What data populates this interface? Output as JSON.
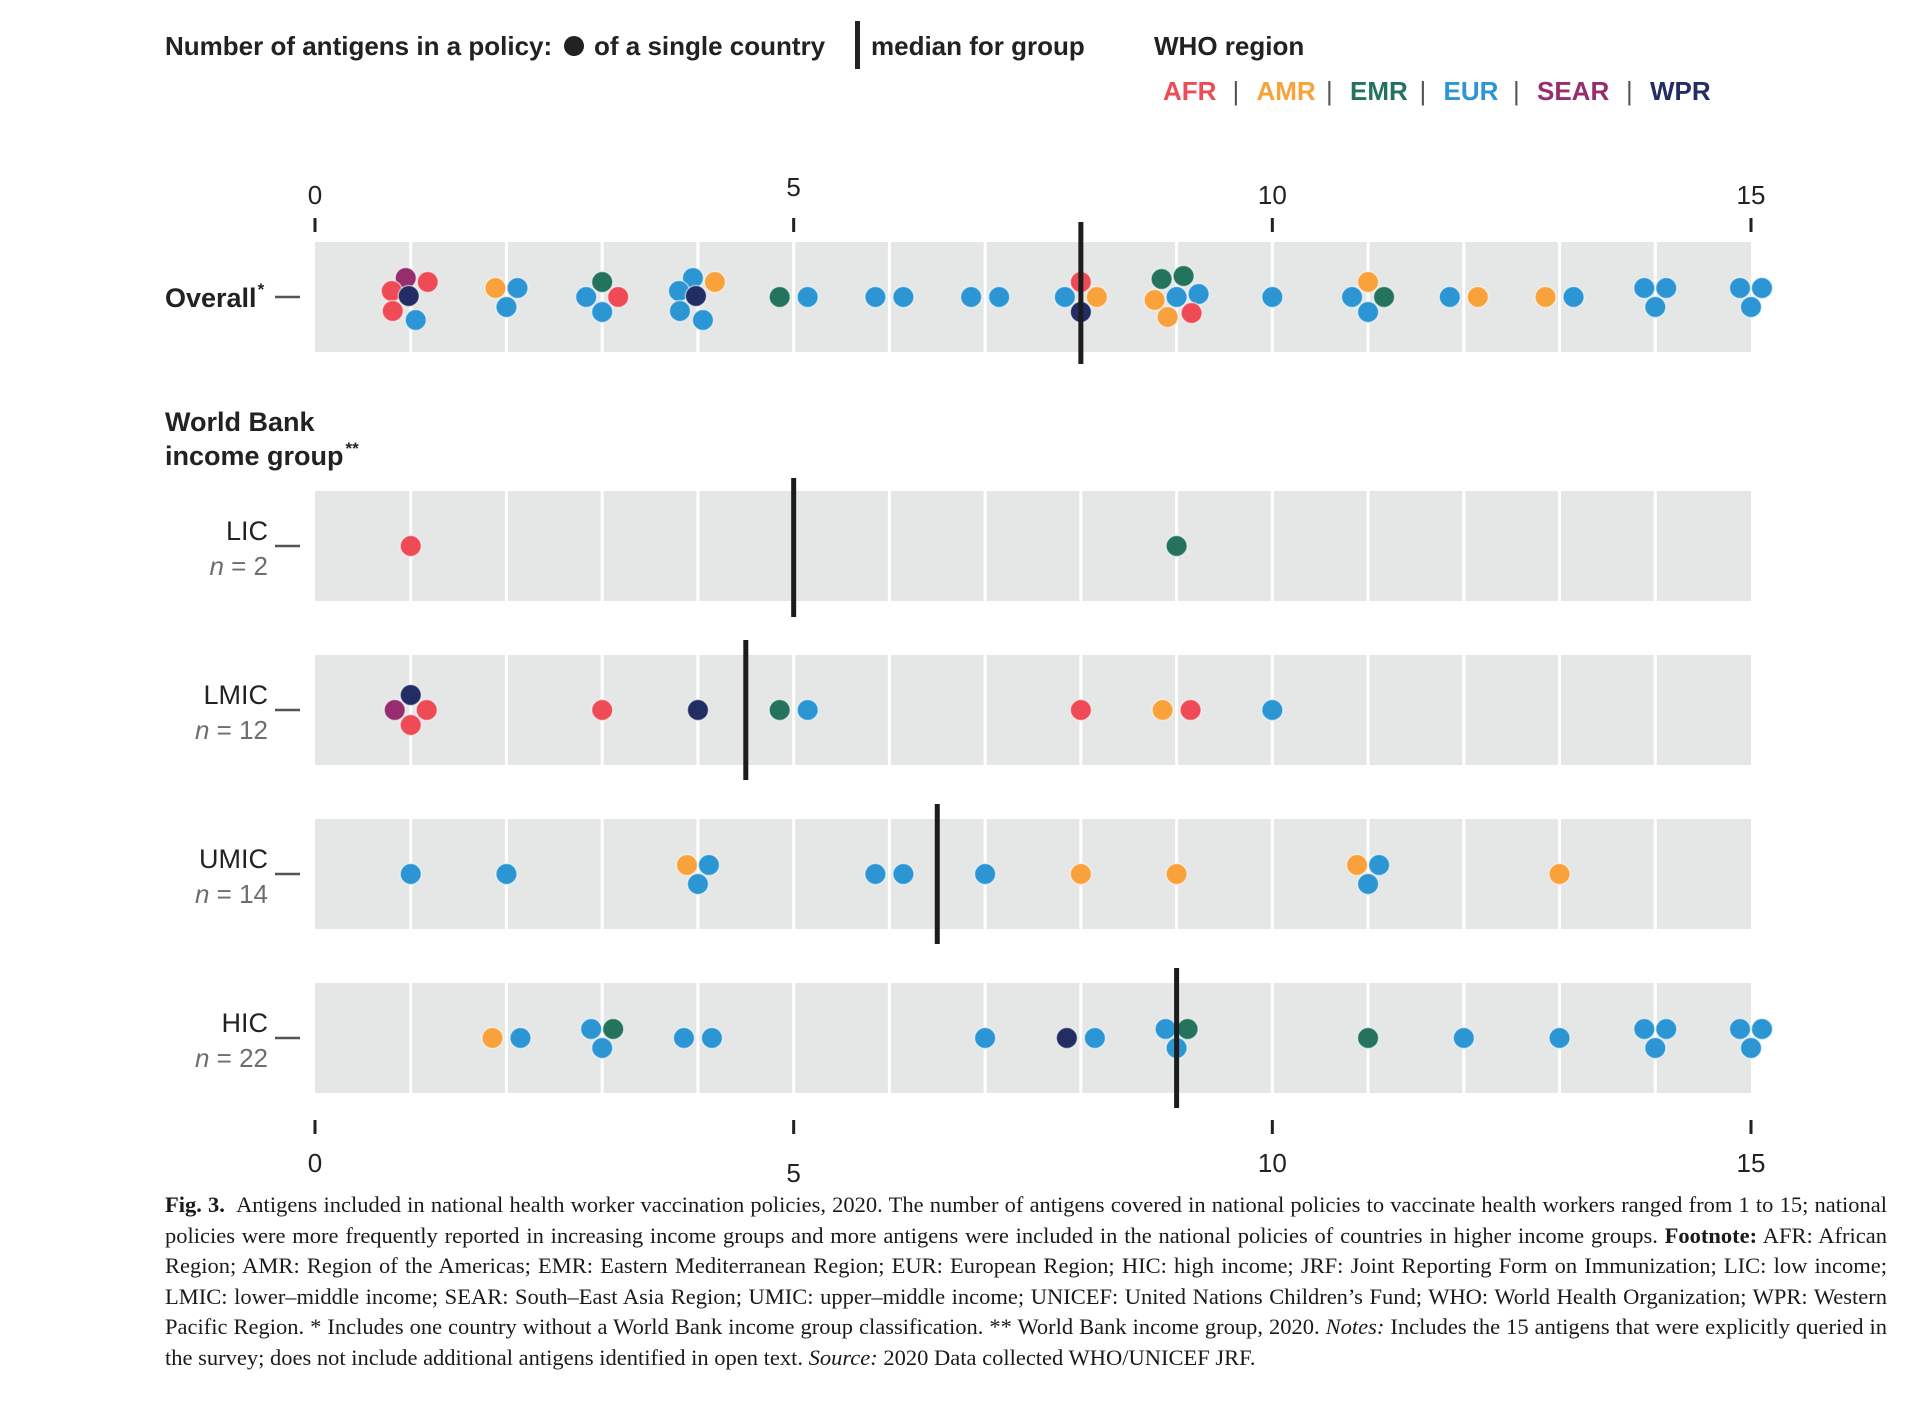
{
  "legend": {
    "dots_title": "Number of antigens in a policy:",
    "dot_label": "of a single country",
    "median_label": "median for group",
    "region_title": "WHO region",
    "separator": "|",
    "regions": [
      {
        "code": "AFR",
        "color": "#ef4b57"
      },
      {
        "code": "AMR",
        "color": "#f9a13a"
      },
      {
        "code": "EMR",
        "color": "#23735d"
      },
      {
        "code": "EUR",
        "color": "#2c95d4"
      },
      {
        "code": "SEAR",
        "color": "#962d6e"
      },
      {
        "code": "WPR",
        "color": "#222d63"
      }
    ]
  },
  "chart_data": {
    "type": "scatter",
    "subtype": "dot strip plot (beeswarm) with group medians",
    "title": "",
    "xlabel": "",
    "ylabel": "",
    "xlim": [
      0,
      15
    ],
    "x_ticks": [
      "0",
      "5",
      "10",
      "15"
    ],
    "grid": true,
    "legend_position": "top",
    "section_header": [
      "World Bank",
      "income group"
    ],
    "section_header_sup": "**",
    "series_colors": {
      "AFR": "#ef4b57",
      "AMR": "#f9a13a",
      "EMR": "#23735d",
      "EUR": "#2c95d4",
      "SEAR": "#962d6e",
      "WPR": "#222d63"
    },
    "groups": [
      {
        "label": "Overall",
        "sup": "*",
        "n_label": "",
        "median": 8,
        "points": [
          {
            "x": 1,
            "r": "SEAR"
          },
          {
            "x": 1,
            "r": "AFR"
          },
          {
            "x": 1,
            "r": "AFR"
          },
          {
            "x": 1,
            "r": "WPR"
          },
          {
            "x": 1,
            "r": "AFR"
          },
          {
            "x": 1,
            "r": "EUR"
          },
          {
            "x": 2,
            "r": "AMR"
          },
          {
            "x": 2,
            "r": "EUR"
          },
          {
            "x": 2,
            "r": "EUR"
          },
          {
            "x": 3,
            "r": "EMR"
          },
          {
            "x": 3,
            "r": "EUR"
          },
          {
            "x": 3,
            "r": "AFR"
          },
          {
            "x": 3,
            "r": "EUR"
          },
          {
            "x": 4,
            "r": "EUR"
          },
          {
            "x": 4,
            "r": "EUR"
          },
          {
            "x": 4,
            "r": "AMR"
          },
          {
            "x": 4,
            "r": "WPR"
          },
          {
            "x": 4,
            "r": "EUR"
          },
          {
            "x": 4,
            "r": "EUR"
          },
          {
            "x": 5,
            "r": "EMR"
          },
          {
            "x": 5,
            "r": "EUR"
          },
          {
            "x": 6,
            "r": "EUR"
          },
          {
            "x": 6,
            "r": "EUR"
          },
          {
            "x": 7,
            "r": "EUR"
          },
          {
            "x": 7,
            "r": "EUR"
          },
          {
            "x": 8,
            "r": "AFR"
          },
          {
            "x": 8,
            "r": "EUR"
          },
          {
            "x": 8,
            "r": "AMR"
          },
          {
            "x": 8,
            "r": "WPR"
          },
          {
            "x": 9,
            "r": "EMR"
          },
          {
            "x": 9,
            "r": "EMR"
          },
          {
            "x": 9,
            "r": "AMR"
          },
          {
            "x": 9,
            "r": "EUR"
          },
          {
            "x": 9,
            "r": "EUR"
          },
          {
            "x": 9,
            "r": "AMR"
          },
          {
            "x": 9,
            "r": "AFR"
          },
          {
            "x": 10,
            "r": "EUR"
          },
          {
            "x": 11,
            "r": "AMR"
          },
          {
            "x": 11,
            "r": "EUR"
          },
          {
            "x": 11,
            "r": "EMR"
          },
          {
            "x": 11,
            "r": "EUR"
          },
          {
            "x": 12,
            "r": "EUR"
          },
          {
            "x": 12,
            "r": "AMR"
          },
          {
            "x": 13,
            "r": "AMR"
          },
          {
            "x": 13,
            "r": "EUR"
          },
          {
            "x": 14,
            "r": "EUR"
          },
          {
            "x": 14,
            "r": "EUR"
          },
          {
            "x": 14,
            "r": "EUR"
          },
          {
            "x": 15,
            "r": "EUR"
          },
          {
            "x": 15,
            "r": "EUR"
          },
          {
            "x": 15,
            "r": "EUR"
          }
        ]
      },
      {
        "label": "LIC",
        "sup": "",
        "n_label": "n = 2",
        "median": 5,
        "points": [
          {
            "x": 1,
            "r": "AFR"
          },
          {
            "x": 9,
            "r": "EMR"
          }
        ]
      },
      {
        "label": "LMIC",
        "sup": "",
        "n_label": "n = 12",
        "median": 4.5,
        "points": [
          {
            "x": 1,
            "r": "WPR"
          },
          {
            "x": 1,
            "r": "SEAR"
          },
          {
            "x": 1,
            "r": "AFR"
          },
          {
            "x": 1,
            "r": "AFR"
          },
          {
            "x": 3,
            "r": "AFR"
          },
          {
            "x": 4,
            "r": "WPR"
          },
          {
            "x": 5,
            "r": "EMR"
          },
          {
            "x": 5,
            "r": "EUR"
          },
          {
            "x": 8,
            "r": "AFR"
          },
          {
            "x": 9,
            "r": "AMR"
          },
          {
            "x": 9,
            "r": "AFR"
          },
          {
            "x": 10,
            "r": "EUR"
          }
        ]
      },
      {
        "label": "UMIC",
        "sup": "",
        "n_label": "n = 14",
        "median": 6.5,
        "points": [
          {
            "x": 1,
            "r": "EUR"
          },
          {
            "x": 2,
            "r": "EUR"
          },
          {
            "x": 4,
            "r": "AMR"
          },
          {
            "x": 4,
            "r": "EUR"
          },
          {
            "x": 4,
            "r": "EUR"
          },
          {
            "x": 6,
            "r": "EUR"
          },
          {
            "x": 6,
            "r": "EUR"
          },
          {
            "x": 7,
            "r": "EUR"
          },
          {
            "x": 8,
            "r": "AMR"
          },
          {
            "x": 9,
            "r": "AMR"
          },
          {
            "x": 11,
            "r": "AMR"
          },
          {
            "x": 11,
            "r": "EUR"
          },
          {
            "x": 11,
            "r": "EUR"
          },
          {
            "x": 13,
            "r": "AMR"
          }
        ]
      },
      {
        "label": "HIC",
        "sup": "",
        "n_label": "n = 22",
        "median": 9,
        "points": [
          {
            "x": 2,
            "r": "AMR"
          },
          {
            "x": 2,
            "r": "EUR"
          },
          {
            "x": 3,
            "r": "EUR"
          },
          {
            "x": 3,
            "r": "EMR"
          },
          {
            "x": 3,
            "r": "EUR"
          },
          {
            "x": 4,
            "r": "EUR"
          },
          {
            "x": 4,
            "r": "EUR"
          },
          {
            "x": 7,
            "r": "EUR"
          },
          {
            "x": 8,
            "r": "WPR"
          },
          {
            "x": 8,
            "r": "EUR"
          },
          {
            "x": 9,
            "r": "EUR"
          },
          {
            "x": 9,
            "r": "EMR"
          },
          {
            "x": 9,
            "r": "EUR"
          },
          {
            "x": 11,
            "r": "EMR"
          },
          {
            "x": 12,
            "r": "EUR"
          },
          {
            "x": 13,
            "r": "EUR"
          },
          {
            "x": 14,
            "r": "EUR"
          },
          {
            "x": 14,
            "r": "EUR"
          },
          {
            "x": 14,
            "r": "EUR"
          },
          {
            "x": 15,
            "r": "EUR"
          },
          {
            "x": 15,
            "r": "EUR"
          },
          {
            "x": 15,
            "r": "EUR"
          }
        ]
      }
    ]
  },
  "caption": {
    "fig_label": "Fig. 3.",
    "main": "Antigens included in national health worker vaccination policies, 2020. The number of antigens covered in national policies to vaccinate health workers ranged from 1 to 15; national policies were more frequently reported in increasing income groups and more antigens were included in the national policies of countries in higher income groups.",
    "footnote_label": "Footnote:",
    "footnote": "AFR: African Region; AMR: Region of the Americas; EMR: Eastern Mediterranean Region; EUR: European Region; HIC: high income; JRF: Joint Reporting Form on Immunization; LIC: low income; LMIC: lower–middle income; SEAR: South–East Asia Region; UMIC: upper–middle income; UNICEF: United Nations Children’s Fund; WHO: World Health Organization; WPR: Western Pacific Region. * Includes one country without a World Bank income group classification. ** World Bank income group, 2020.",
    "notes_label": "Notes:",
    "notes": "Includes the 15 antigens that were explicitly queried in the survey; does not include additional antigens identified in open text.",
    "source_label": "Source:",
    "source": "2020 Data collected WHO/UNICEF JRF."
  }
}
